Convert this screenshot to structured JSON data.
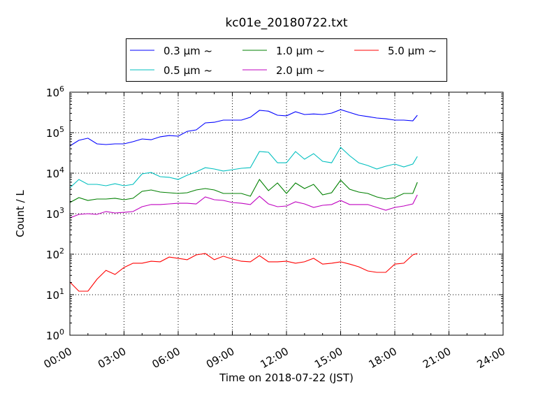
{
  "chart_data": {
    "type": "line",
    "title": "kc01e_20180722.txt",
    "xlabel": "Time on 2018-07-22 (JST)",
    "ylabel": "Count / L",
    "yscale": "log",
    "ylim": [
      1,
      1000000
    ],
    "xlim_hours": [
      0,
      24
    ],
    "xtick_labels": [
      "00:00",
      "03:00",
      "06:00",
      "09:00",
      "12:00",
      "15:00",
      "18:00",
      "21:00",
      "24:00"
    ],
    "ytick_base": "10",
    "ytick_exponents": [
      "0",
      "1",
      "2",
      "3",
      "4",
      "5",
      "6"
    ],
    "grid": true,
    "legend_placement": "top-center, above plot",
    "x_hours": [
      0,
      0.5,
      1,
      1.5,
      2,
      2.5,
      3,
      3.5,
      4,
      4.5,
      5,
      5.5,
      6,
      6.5,
      7,
      7.5,
      8,
      8.5,
      9,
      9.5,
      10,
      10.5,
      11,
      11.5,
      12,
      12.5,
      13,
      13.5,
      14,
      14.5,
      15,
      15.5,
      16,
      16.5,
      17,
      17.5,
      18,
      18.5,
      19,
      19.25
    ],
    "series": [
      {
        "name": "0.3 μm ~",
        "color": "#0000ff",
        "values": [
          47000,
          65000,
          73000,
          53000,
          51000,
          53000,
          53000,
          60000,
          70000,
          67000,
          79000,
          85000,
          82000,
          108000,
          117000,
          174000,
          181000,
          204000,
          204000,
          204000,
          240000,
          356000,
          340000,
          270000,
          260000,
          329000,
          281000,
          290000,
          281000,
          304000,
          370000,
          316000,
          270000,
          250000,
          230000,
          220000,
          204000,
          204000,
          196000,
          270000
        ]
      },
      {
        "name": "0.5 μm ~",
        "color": "#00bfbf",
        "values": [
          4350,
          7000,
          5300,
          5300,
          4900,
          5500,
          4900,
          5300,
          9600,
          10400,
          8200,
          7900,
          7000,
          8900,
          10800,
          13700,
          12700,
          11300,
          12200,
          13200,
          13700,
          34200,
          32900,
          18100,
          18100,
          34200,
          22100,
          30400,
          19600,
          18100,
          43400,
          27000,
          18100,
          15500,
          12700,
          14900,
          16800,
          14300,
          16800,
          25900
        ]
      },
      {
        "name": "1.0 μm ~",
        "color": "#008000",
        "values": [
          1890,
          2490,
          2130,
          2300,
          2300,
          2400,
          2210,
          2400,
          3560,
          3860,
          3420,
          3290,
          3160,
          3290,
          3860,
          4180,
          3860,
          3160,
          3160,
          3160,
          2700,
          7000,
          3700,
          5740,
          3160,
          5740,
          4180,
          5300,
          2920,
          3290,
          6730,
          4010,
          3420,
          3160,
          2590,
          2300,
          2490,
          3160,
          3160,
          5970
        ]
      },
      {
        "name": "2.0 μm ~",
        "color": "#bf00bf",
        "values": [
          789,
          962,
          1000,
          962,
          1130,
          1040,
          1080,
          1130,
          1490,
          1680,
          1680,
          1740,
          1810,
          1810,
          1740,
          2590,
          2210,
          2130,
          1890,
          1810,
          1680,
          2700,
          1740,
          1490,
          1550,
          1960,
          1740,
          1430,
          1610,
          1680,
          2130,
          1680,
          1680,
          1680,
          1430,
          1220,
          1430,
          1550,
          1740,
          2920
        ]
      },
      {
        "name": "5.0 μm ~",
        "color": "#ff0000",
        "values": [
          20.5,
          12.2,
          12.2,
          24,
          40,
          31.6,
          47,
          60,
          60,
          67,
          65,
          85,
          79,
          73,
          96,
          104,
          73,
          89,
          76,
          67,
          65,
          92,
          65,
          65,
          67,
          60,
          65,
          79,
          57,
          60,
          65,
          57,
          49,
          38.5,
          35.6,
          35.6,
          57,
          60,
          96,
          104
        ]
      }
    ]
  }
}
